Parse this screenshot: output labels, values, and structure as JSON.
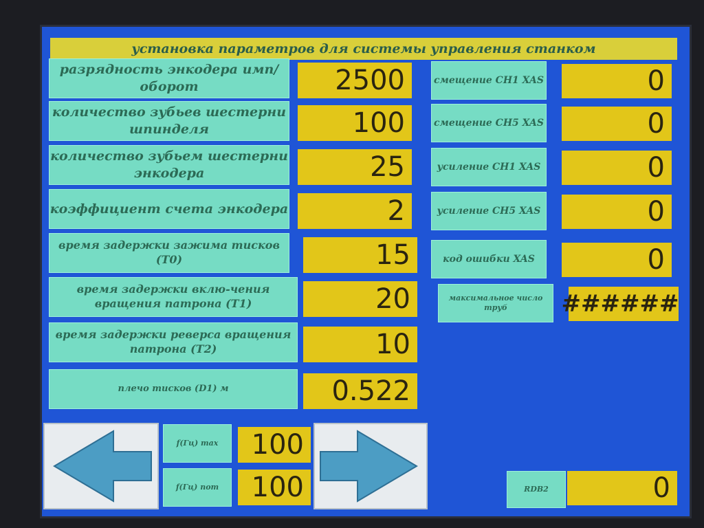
{
  "title": "установка параметров для системы управления станком",
  "left_params": [
    {
      "label": "разрядность энкодера имп/оборот",
      "value": "2500"
    },
    {
      "label": "количество зубьев шестерни шпинделя",
      "value": "100"
    },
    {
      "label": "количество зубьем шестерни энкодера",
      "value": "25"
    },
    {
      "label": "коэффициент счета энкодера",
      "value": "2"
    },
    {
      "label": "время задержки зажима тисков (T0)",
      "value": "15"
    },
    {
      "label": "время задержки вклю-чения вращения патрона (T1)",
      "value": "20"
    },
    {
      "label": "время задержки реверса вращения патрона (T2)",
      "value": "10"
    },
    {
      "label": "плечо тисков (D1) м",
      "value": "0.522"
    }
  ],
  "right_params": [
    {
      "label": "смещение CH1 XAS",
      "value": "0"
    },
    {
      "label": "смещение CH5 XAS",
      "value": "0"
    },
    {
      "label": "усиление CH1 XAS",
      "value": "0"
    },
    {
      "label": "усиление CH5 XAS",
      "value": "0"
    },
    {
      "label": "код ошибки XAS",
      "value": "0"
    },
    {
      "label": "максимальное число труб",
      "value": "######"
    }
  ],
  "freq": [
    {
      "label": "f(Гц) max",
      "value": "100"
    },
    {
      "label": "f(Гц) nom",
      "value": "100"
    }
  ],
  "rdb": {
    "label": "RDB2",
    "value": "0"
  },
  "nav": {
    "prev_icon": "arrow-left-icon",
    "next_icon": "arrow-right-icon"
  }
}
